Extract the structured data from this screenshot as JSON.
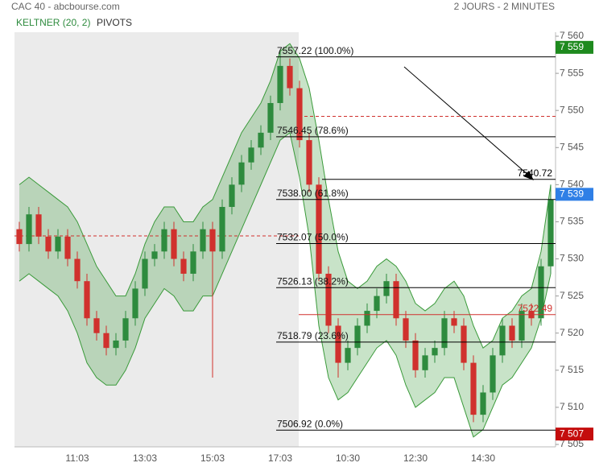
{
  "header": {
    "source": "CAC 40 - abcbourse.com",
    "period": "2 JOURS - 2 MINUTES",
    "indicator": "KELTNER (20, 2)",
    "pivots_label": "PIVOTS"
  },
  "chart_data": {
    "type": "candlestick",
    "ylim": [
      7505,
      7560
    ],
    "yticks": [
      {
        "value": 7505,
        "label": "7 505"
      },
      {
        "value": 7510,
        "label": "7 510"
      },
      {
        "value": 7515,
        "label": "7 515"
      },
      {
        "value": 7520,
        "label": "7 520"
      },
      {
        "value": 7525,
        "label": "7 525"
      },
      {
        "value": 7530,
        "label": "7 530"
      },
      {
        "value": 7535,
        "label": "7 535"
      },
      {
        "value": 7540,
        "label": "7 540"
      },
      {
        "value": 7545,
        "label": "7 545"
      },
      {
        "value": 7550,
        "label": "7 550"
      },
      {
        "value": 7555,
        "label": "7 555"
      },
      {
        "value": 7560,
        "label": "7 560"
      }
    ],
    "categories": [
      null,
      null,
      null,
      null,
      null,
      null,
      "11:03",
      null,
      null,
      null,
      null,
      null,
      null,
      "13:03",
      null,
      null,
      null,
      null,
      null,
      null,
      "15:03",
      null,
      null,
      null,
      null,
      null,
      null,
      "17:03",
      null,
      null,
      null,
      null,
      null,
      null,
      "10:30",
      null,
      null,
      null,
      null,
      null,
      null,
      "12:30",
      null,
      null,
      null,
      null,
      null,
      null,
      "14:30",
      null,
      null,
      null,
      null,
      null,
      null,
      null
    ],
    "open": [
      7534,
      7532,
      7536,
      7533,
      7531,
      7533,
      7530,
      7527,
      7522,
      7520,
      7518,
      7519,
      7522,
      7526,
      7530,
      7531,
      7534,
      7530,
      7528,
      7531,
      7534,
      7531,
      7537,
      7540,
      7543,
      7545,
      7547,
      7551,
      7556,
      7553,
      7546,
      7540,
      7528,
      7521,
      7516,
      7518,
      7521,
      7523,
      7525,
      7527,
      7522,
      7519,
      7515,
      7517,
      7518,
      7522,
      7521,
      7516,
      7509,
      7512,
      7517,
      7521,
      7519,
      7523,
      7522,
      7529
    ],
    "high": [
      7535,
      7537,
      7537,
      7534,
      7534,
      7534,
      7531,
      7528,
      7523,
      7521,
      7520,
      7523,
      7527,
      7531,
      7532,
      7535,
      7535,
      7531,
      7532,
      7535,
      7535,
      7538,
      7541,
      7544,
      7546,
      7548,
      7552,
      7558,
      7557,
      7554,
      7547,
      7541,
      7529,
      7522,
      7519,
      7522,
      7524,
      7526,
      7528,
      7528,
      7523,
      7520,
      7518,
      7519,
      7523,
      7523,
      7522,
      7517,
      7513,
      7518,
      7522,
      7522,
      7524,
      7524,
      7530,
      7540
    ],
    "low": [
      7531,
      7531,
      7532,
      7530,
      7530,
      7529,
      7526,
      7521,
      7519,
      7517,
      7517,
      7518,
      7521,
      7525,
      7529,
      7530,
      7529,
      7527,
      7527,
      7530,
      7514,
      7530,
      7536,
      7539,
      7542,
      7544,
      7546,
      7550,
      7552,
      7545,
      7539,
      7527,
      7520,
      7514,
      7515,
      7517,
      7520,
      7522,
      7524,
      7521,
      7518,
      7514,
      7514,
      7516,
      7517,
      7520,
      7515,
      7508,
      7508,
      7511,
      7516,
      7518,
      7518,
      7521,
      7521,
      7528
    ],
    "close": [
      7532,
      7536,
      7533,
      7531,
      7533,
      7530,
      7527,
      7522,
      7520,
      7518,
      7519,
      7522,
      7526,
      7530,
      7531,
      7534,
      7530,
      7528,
      7531,
      7534,
      7531,
      7537,
      7540,
      7543,
      7545,
      7547,
      7551,
      7556,
      7553,
      7546,
      7540,
      7528,
      7521,
      7516,
      7518,
      7521,
      7523,
      7525,
      7527,
      7522,
      7519,
      7515,
      7517,
      7518,
      7522,
      7521,
      7516,
      7509,
      7512,
      7517,
      7521,
      7519,
      7523,
      7522,
      7529,
      7538
    ],
    "up_color": "#2e8b3e",
    "down_color": "#d0312d",
    "keltner": {
      "color": "#3a9a3a",
      "upper": [
        7540,
        7541,
        7540,
        7539,
        7538,
        7537,
        7535,
        7532,
        7529,
        7527,
        7525,
        7525,
        7528,
        7532,
        7535,
        7537,
        7537,
        7535,
        7535,
        7537,
        7538,
        7541,
        7544,
        7547,
        7549,
        7551,
        7554,
        7558,
        7559,
        7557,
        7553,
        7546,
        7538,
        7531,
        7527,
        7526,
        7527,
        7529,
        7530,
        7529,
        7527,
        7524,
        7523,
        7524,
        7526,
        7527,
        7525,
        7521,
        7518,
        7519,
        7522,
        7523,
        7525,
        7526,
        7531,
        7540
      ],
      "lower": [
        7527,
        7528,
        7527,
        7526,
        7525,
        7523,
        7520,
        7516,
        7514,
        7513,
        7513,
        7515,
        7518,
        7522,
        7524,
        7526,
        7525,
        7523,
        7523,
        7525,
        7525,
        7528,
        7531,
        7534,
        7537,
        7540,
        7543,
        7546,
        7547,
        7541,
        7533,
        7521,
        7514,
        7511,
        7512,
        7514,
        7516,
        7518,
        7519,
        7517,
        7513,
        7510,
        7511,
        7512,
        7514,
        7514,
        7510,
        7506,
        7507,
        7510,
        7513,
        7514,
        7516,
        7518,
        7522,
        7528
      ]
    },
    "pivots": [
      7533.1,
      7549.2
    ],
    "fibonacci": [
      {
        "value": 7557.22,
        "label": "7557.22  (100.0%)"
      },
      {
        "value": 7546.45,
        "label": "7546.45  (78.6%)"
      },
      {
        "value": 7538.0,
        "label": "7538.00  (61.8%)"
      },
      {
        "value": 7532.07,
        "label": "7532.07  (50.0%)"
      },
      {
        "value": 7526.13,
        "label": "7526.13  (38.2%)"
      },
      {
        "value": 7518.79,
        "label": "7518.79  (23.6%)"
      },
      {
        "value": 7506.92,
        "label": "7506.92  (0.0%)"
      }
    ],
    "levels": [
      {
        "value": 7540.72,
        "label": "7540.72",
        "color": "#000000"
      },
      {
        "value": 7522.49,
        "label": "7522.49",
        "color": "#d0312d"
      }
    ],
    "price_tags": [
      {
        "value": 7558.5,
        "label": "7 559",
        "color": "#1e8a1e"
      },
      {
        "value": 7538.7,
        "label": "7 539",
        "color": "#2f7fe6"
      },
      {
        "value": 7506.4,
        "label": "7 507",
        "color": "#c40d0d"
      }
    ]
  }
}
